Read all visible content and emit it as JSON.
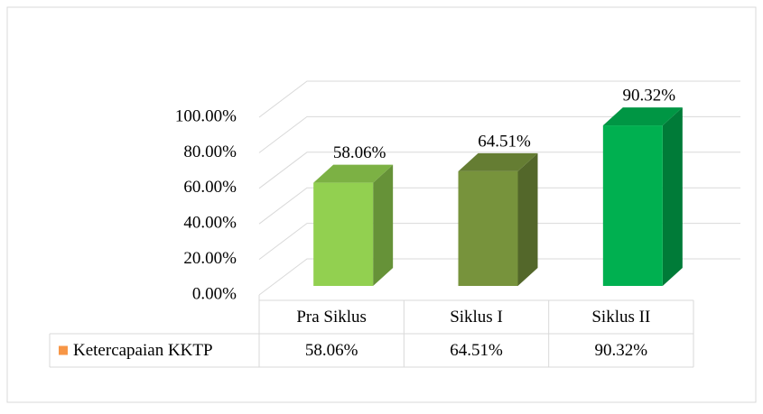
{
  "chart_data": {
    "type": "bar3d",
    "categories": [
      "Pra Siklus",
      "Siklus I",
      "Siklus II"
    ],
    "series": [
      {
        "name": "Ketercapaian KKTP",
        "color": "#f79646",
        "values": [
          58.06,
          64.51,
          90.32
        ],
        "value_labels": [
          "58.06%",
          "64.51%",
          "90.32%"
        ]
      }
    ],
    "bar_colors": [
      "#92d050",
      "#77933c",
      "#00b050"
    ],
    "ylim": [
      0,
      100
    ],
    "yticks": [
      {
        "value": 0,
        "label": "0.00%"
      },
      {
        "value": 20,
        "label": "20.00%"
      },
      {
        "value": 40,
        "label": "40.00%"
      },
      {
        "value": 60,
        "label": "60.00%"
      },
      {
        "value": 80,
        "label": "80.00%"
      },
      {
        "value": 100,
        "label": "100.00%"
      }
    ],
    "grid": true,
    "data_table": true
  }
}
